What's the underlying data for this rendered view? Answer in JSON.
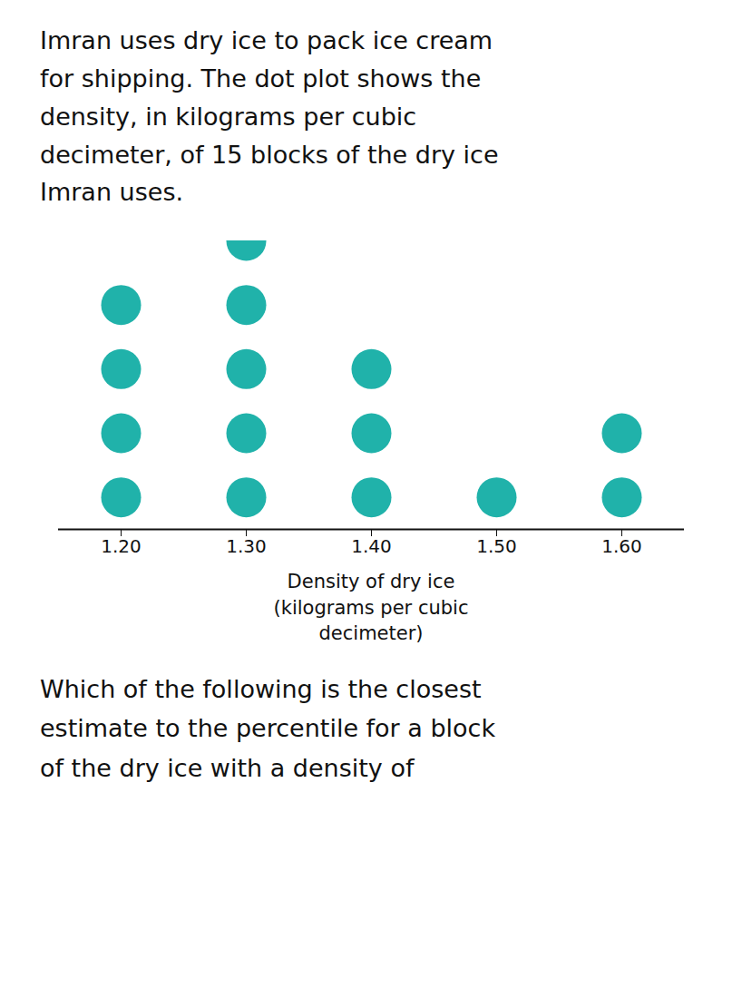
{
  "chart_data": {
    "type": "dot",
    "title": "Imran uses dry ice to pack ice cream\nfor shipping. The dot plot shows the\ndensity, in kilograms per cubic\ndecimeter, of 15 blocks of the dry ice\nImran uses.",
    "x": [
      1.2,
      1.3,
      1.4,
      1.5,
      1.6
    ],
    "values": [
      4,
      5,
      3,
      1,
      2
    ],
    "color": "#20B2AA",
    "xlabel": "Density of dry ice\n(kilograms per cubic\ndecimeter)",
    "xlim": [
      1.15,
      1.65
    ],
    "xticks": [
      1.2,
      1.3,
      1.4,
      1.5,
      1.6
    ],
    "tick_labels": "x",
    "annotations": [
      "Which of the following is the closest",
      "estimate to the percentile for a block",
      "of the dry ice with a density of"
    ]
  }
}
